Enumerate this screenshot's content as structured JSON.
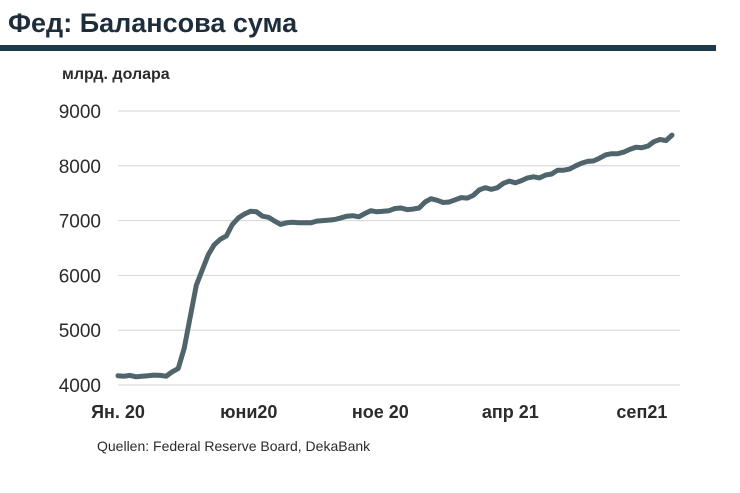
{
  "title": "Фед: Балансова сума",
  "unit_label": "млрд. долара",
  "source": "Quellen: Federal Reserve Board, DekaBank",
  "colors": {
    "line": "#4f646b",
    "title_bar": "#1e3a4a",
    "grid": "#cfd6da"
  },
  "chart_data": {
    "type": "line",
    "title": "Фед: Балансова сума",
    "ylabel": "млрд. долара",
    "xlabel": "",
    "ylim": [
      4000,
      9000
    ],
    "yticks": [
      4000,
      5000,
      6000,
      7000,
      8000,
      9000
    ],
    "xticks": [
      {
        "x": "2020-01",
        "label": "Ян. 20"
      },
      {
        "x": "2020-06",
        "label": "юни20"
      },
      {
        "x": "2020-11",
        "label": "ное 20"
      },
      {
        "x": "2021-04",
        "label": "апр 21"
      },
      {
        "x": "2021-09",
        "label": "сеп21"
      }
    ],
    "grid": true,
    "series": [
      {
        "x": [
          "2020-01-01",
          "2020-01-08",
          "2020-01-15",
          "2020-01-22",
          "2020-01-29",
          "2020-02-05",
          "2020-02-12",
          "2020-02-19",
          "2020-02-26",
          "2020-03-04",
          "2020-03-11",
          "2020-03-18",
          "2020-03-25",
          "2020-04-01",
          "2020-04-08",
          "2020-04-15",
          "2020-04-22",
          "2020-04-29",
          "2020-05-06",
          "2020-05-13",
          "2020-05-20",
          "2020-05-27",
          "2020-06-03",
          "2020-06-10",
          "2020-06-17",
          "2020-06-24",
          "2020-07-01",
          "2020-07-08",
          "2020-07-15",
          "2020-07-22",
          "2020-07-29",
          "2020-08-05",
          "2020-08-12",
          "2020-08-19",
          "2020-08-26",
          "2020-09-02",
          "2020-09-09",
          "2020-09-16",
          "2020-09-23",
          "2020-09-30",
          "2020-10-07",
          "2020-10-14",
          "2020-10-21",
          "2020-10-28",
          "2020-11-04",
          "2020-11-11",
          "2020-11-18",
          "2020-11-25",
          "2020-12-02",
          "2020-12-09",
          "2020-12-16",
          "2020-12-23",
          "2020-12-30",
          "2021-01-06",
          "2021-01-13",
          "2021-01-20",
          "2021-01-27",
          "2021-02-03",
          "2021-02-10",
          "2021-02-17",
          "2021-02-24",
          "2021-03-03",
          "2021-03-10",
          "2021-03-17",
          "2021-03-24",
          "2021-03-31",
          "2021-04-07",
          "2021-04-14",
          "2021-04-21",
          "2021-04-28",
          "2021-05-05",
          "2021-05-12",
          "2021-05-19",
          "2021-05-26",
          "2021-06-02",
          "2021-06-09",
          "2021-06-16",
          "2021-06-23",
          "2021-06-30",
          "2021-07-07",
          "2021-07-14",
          "2021-07-21",
          "2021-07-28",
          "2021-08-04",
          "2021-08-11",
          "2021-08-18",
          "2021-08-25",
          "2021-09-01",
          "2021-09-08",
          "2021-09-15",
          "2021-09-22",
          "2021-09-29",
          "2021-10-06"
        ],
        "values": [
          4170,
          4160,
          4175,
          4150,
          4160,
          4170,
          4180,
          4175,
          4160,
          4240,
          4300,
          4670,
          5250,
          5820,
          6100,
          6380,
          6560,
          6660,
          6720,
          6930,
          7050,
          7120,
          7170,
          7160,
          7080,
          7060,
          6990,
          6930,
          6960,
          6970,
          6960,
          6960,
          6960,
          6990,
          7000,
          7010,
          7020,
          7050,
          7080,
          7090,
          7070,
          7130,
          7180,
          7160,
          7170,
          7180,
          7220,
          7230,
          7200,
          7210,
          7230,
          7340,
          7400,
          7370,
          7330,
          7340,
          7380,
          7420,
          7410,
          7460,
          7560,
          7600,
          7570,
          7600,
          7680,
          7720,
          7690,
          7730,
          7780,
          7800,
          7780,
          7830,
          7850,
          7920,
          7920,
          7940,
          8000,
          8050,
          8080,
          8090,
          8140,
          8200,
          8220,
          8220,
          8250,
          8300,
          8340,
          8330,
          8360,
          8440,
          8480,
          8460,
          8560
        ]
      }
    ]
  }
}
